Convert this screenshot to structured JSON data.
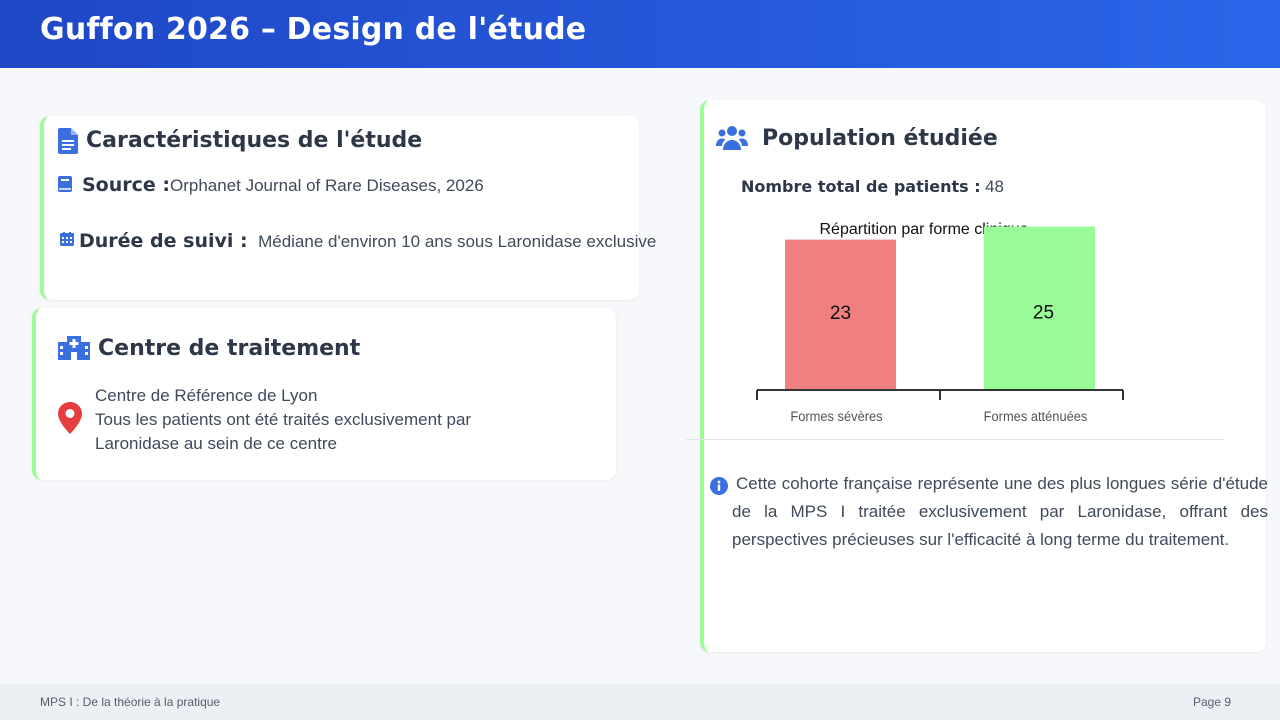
{
  "header": {
    "title": "Guffon 2026 – Design de l'étude"
  },
  "study": {
    "title": "Caractéristiques de l'étude",
    "source_label": "Source :",
    "source_value": "Orphanet Journal of Rare Diseases, 2026",
    "duration_label": "Durée de suivi :",
    "duration_value": "Médiane d'environ 10 ans sous Laronidase exclusive"
  },
  "center": {
    "title": "Centre de traitement",
    "lines": [
      "Centre de Référence de Lyon",
      "Tous les patients ont été traités exclusivement par",
      "Laronidase au sein de ce centre"
    ]
  },
  "population": {
    "title": "Population étudiée",
    "total_label": "Nombre total de patients :",
    "total_value": "48",
    "info_text": "Cette cohorte française représente une des plus longues série d'étude de la MPS I traitée exclusivement par Laronidase, offrant des perspectives précieuses sur l'efficacité à long terme du traitement."
  },
  "chart_data": {
    "type": "bar",
    "title": "Répartition par forme clinique",
    "categories": [
      "Formes sévères",
      "Formes atténuées"
    ],
    "values": [
      23,
      25
    ],
    "colors": [
      "#f08080",
      "#98fb98"
    ],
    "ylim": [
      0,
      26
    ],
    "grid": false,
    "legend": "none"
  },
  "footer": {
    "left": "MPS I : De la théorie à la pratique",
    "right": "Page 9"
  },
  "colors": {
    "header_start": "#1f47c6",
    "header_end": "#2a66e8",
    "accent_border": "#9dfa94",
    "icon_blue": "#3b6fe0",
    "pin_red": "#e53e3e"
  }
}
